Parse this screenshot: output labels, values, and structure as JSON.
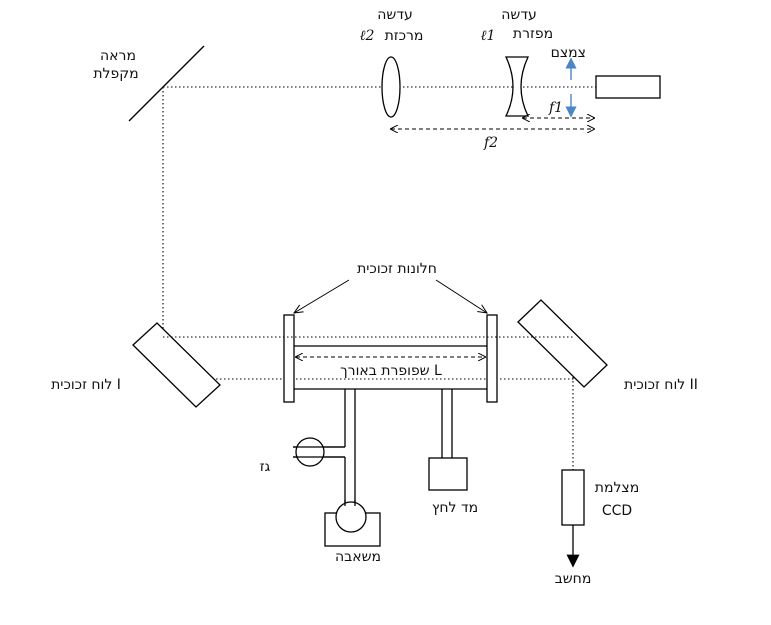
{
  "labels": {
    "lens_focusing_title": "עדשה",
    "lens_focusing_name": "מרכזת",
    "lens_focusing_symbol": "ℓ2",
    "lens_diverging_title": "עדשה",
    "lens_diverging_name": "מפזרת",
    "lens_diverging_symbol": "ℓ1",
    "aperture": "צמצם",
    "f1": "f1",
    "f2": "f2",
    "folding_mirror_line1": "מראה",
    "folding_mirror_line2": "מקפלת",
    "glass_windows": "חלונות זכוכית",
    "tube": "שפופרת באורך L",
    "plate_left": "לוח זכוכית I",
    "plate_right": "לוח זכוכית II",
    "gas": "גז",
    "pump": "משאבה",
    "pressure_gauge": "מד לחץ",
    "camera_line1": "מצלמת",
    "camera_line2": "CCD",
    "computer": "מחשב"
  },
  "colors": {
    "aperture_arrow": "#4a86c8",
    "line": "#000000"
  }
}
